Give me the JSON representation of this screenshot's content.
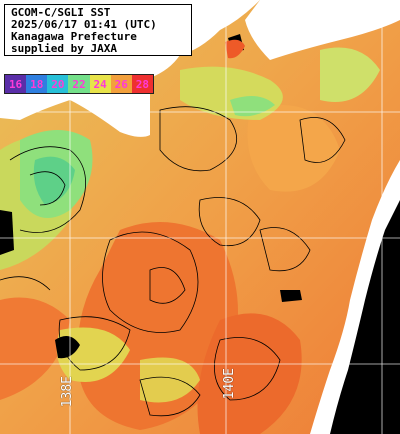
{
  "title": {
    "line1": "GCOM-C/SGLI SST",
    "line2": "2025/06/17 01:41 (UTC)",
    "line3": "Kanagawa Prefecture",
    "line4": "supplied by JAXA"
  },
  "scale": {
    "labels": [
      "16",
      "18",
      "20",
      "22",
      "24",
      "26",
      "28"
    ],
    "colors": [
      "#5a2ea8",
      "#2f7fe0",
      "#28c0d8",
      "#74e08a",
      "#e8e34a",
      "#f3a03c",
      "#ee3030"
    ],
    "text_colors": [
      "#ff3ad8",
      "#ff3ad8",
      "#ff3ad8",
      "#ff3ad8",
      "#ff3ad8",
      "#ff3ad8",
      "#ff3ad8"
    ]
  },
  "graticule_labels": {
    "lon_138": "138E",
    "lon_140": "140E"
  },
  "colors": {
    "land": "#ffffff",
    "no_data": "#000000",
    "sst_warm": "#f08a3c",
    "sst_cool": "#c7dc62",
    "sst_cold": "#7fe28a",
    "contour": "#000000",
    "grid": "#ffffff"
  }
}
